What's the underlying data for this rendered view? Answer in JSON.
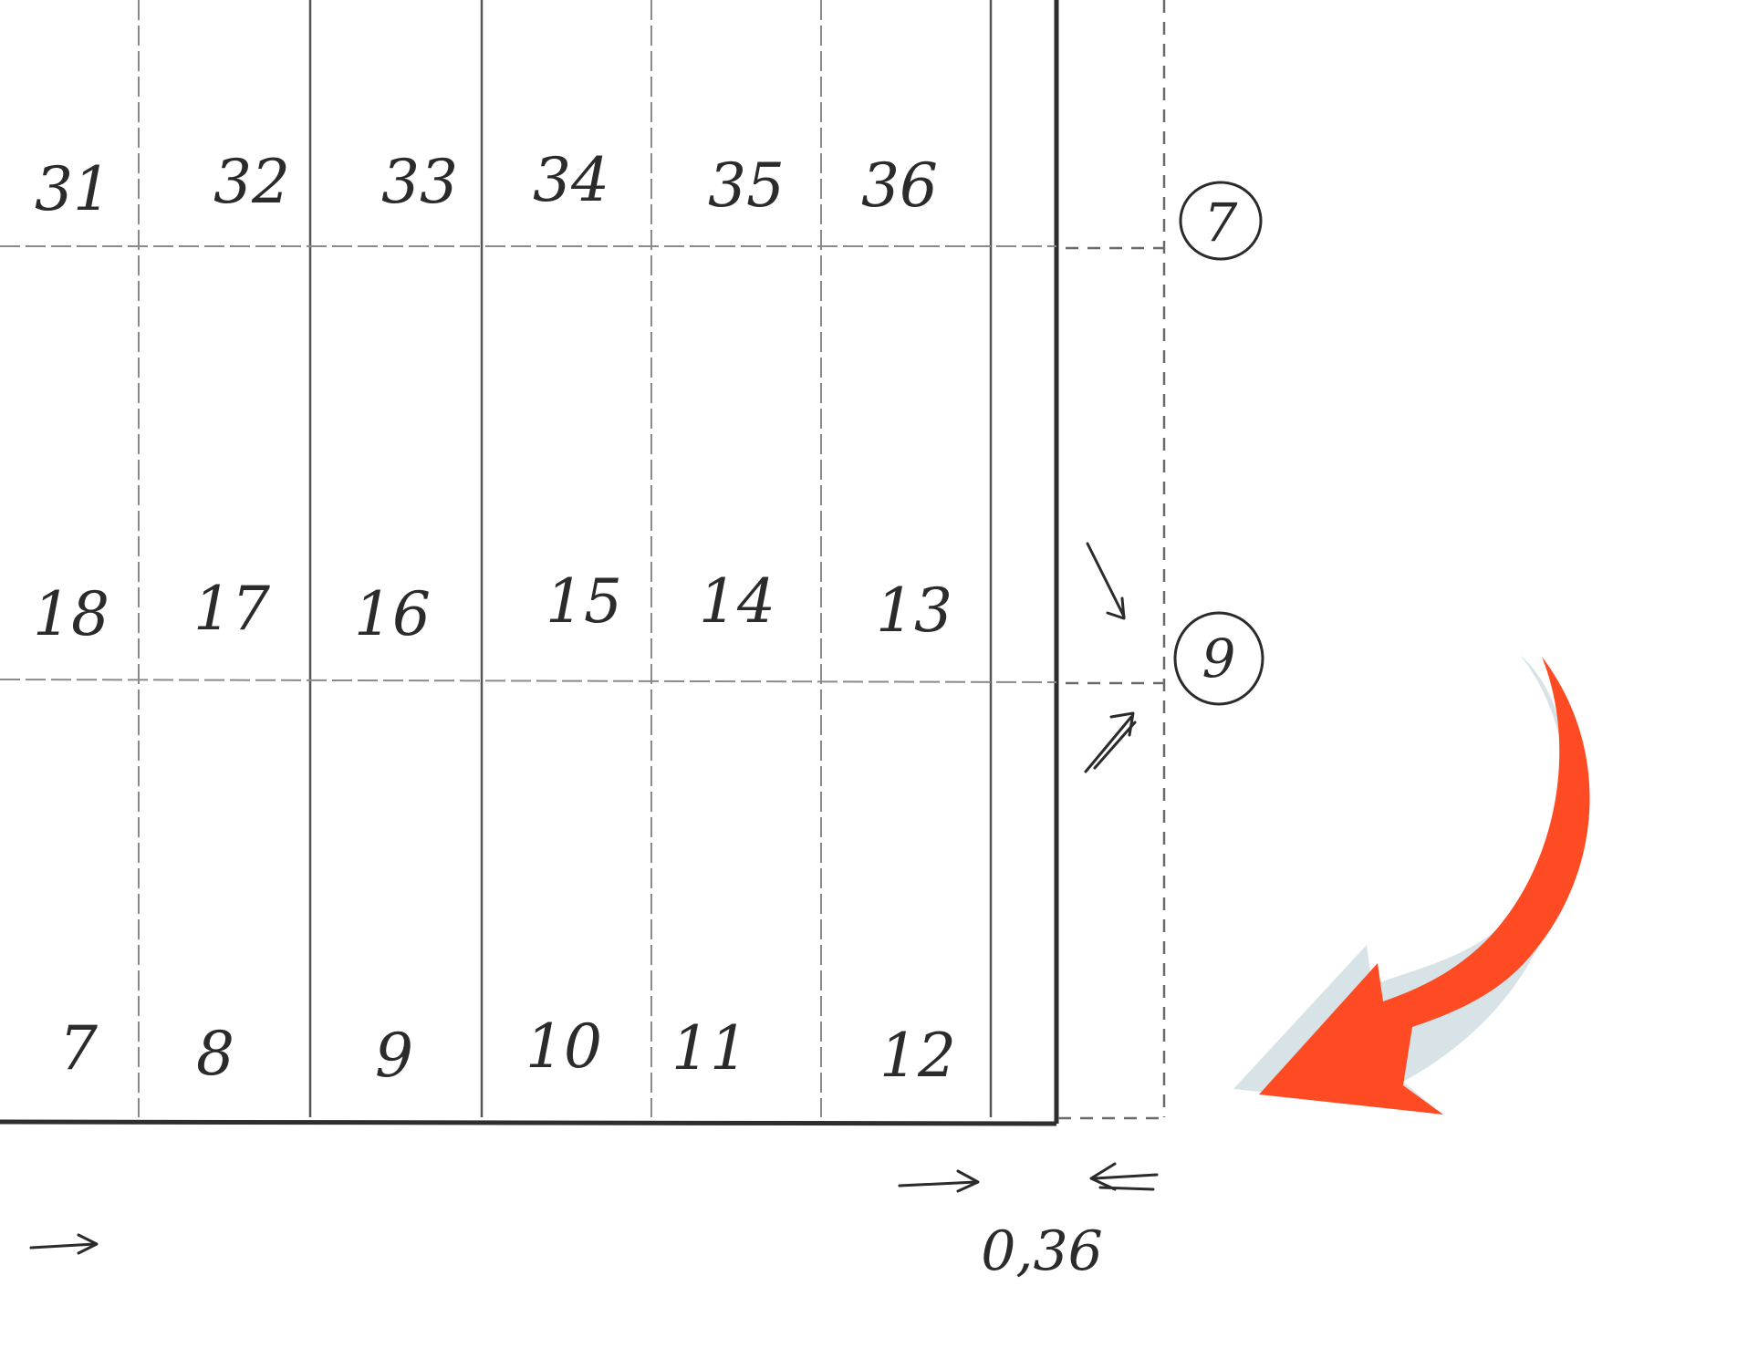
{
  "grid": {
    "top_row": [
      "31",
      "32",
      "33",
      "34",
      "35",
      "36"
    ],
    "middle_row": [
      "18",
      "17",
      "16",
      "15",
      "14",
      "13"
    ],
    "bottom_row": [
      "7",
      "8",
      "9",
      "10",
      "11",
      "12"
    ]
  },
  "row_markers": [
    "7",
    "9"
  ],
  "dimension_label": "0,36",
  "colors": {
    "arrow_fill": "#FF4B24",
    "arrow_shadow": "#D7E3E6",
    "ink": "#2B2B2B",
    "paper": "#FFFFFF"
  }
}
